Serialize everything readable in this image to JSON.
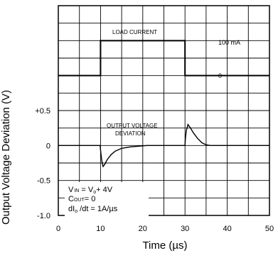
{
  "chart_data": {
    "type": "line",
    "xlabel": "Time (µs)",
    "ylabel": "Output Voltage Deviation (V)",
    "xlim": [
      0,
      50
    ],
    "ylim": [
      -1.0,
      0.5
    ],
    "x_ticks": [
      "0",
      "10",
      "20",
      "30",
      "40",
      "50"
    ],
    "y_ticks": [
      "+0.5",
      "0",
      "-0.5",
      "-1.0"
    ],
    "grid": true,
    "series": [
      {
        "name": "OUTPUT VOLTAGE DEVIATION",
        "x": [
          0,
          9.9,
          10.1,
          10.3,
          10.6,
          11.0,
          11.6,
          12.5,
          13.5,
          15,
          17,
          19,
          21,
          30.0,
          30.1,
          30.3,
          30.7,
          31.3,
          32,
          33,
          34,
          35,
          36,
          50
        ],
        "y": [
          0,
          0,
          -0.12,
          -0.22,
          -0.3,
          -0.27,
          -0.2,
          -0.13,
          -0.08,
          -0.04,
          -0.02,
          -0.01,
          0,
          0,
          0.1,
          0.21,
          0.3,
          0.25,
          0.18,
          0.1,
          0.04,
          0.01,
          0,
          0
        ]
      },
      {
        "name": "LOAD CURRENT",
        "x": [
          0,
          10,
          10,
          30,
          30,
          50
        ],
        "level": [
          0,
          0,
          100,
          100,
          0,
          0
        ],
        "unit": "mA"
      }
    ],
    "annotations": {
      "load_current_label": "LOAD CURRENT",
      "current_high": "100 mA",
      "current_low": "0",
      "deviation_line1": "OUTPUT VOLTAGE",
      "deviation_line2": "DEVIATION"
    },
    "conditions": {
      "vin_main": "V",
      "vin_sub": "IN",
      "vin_eq": " = V",
      "vin_sub2": "o",
      "vin_rest": "+ 4V",
      "cout_main": "C",
      "cout_sub": "OUT",
      "cout_rest": "= 0",
      "di_main": "dI",
      "di_sub": "o",
      "di_rest": " /dt = 1A/µs"
    }
  }
}
